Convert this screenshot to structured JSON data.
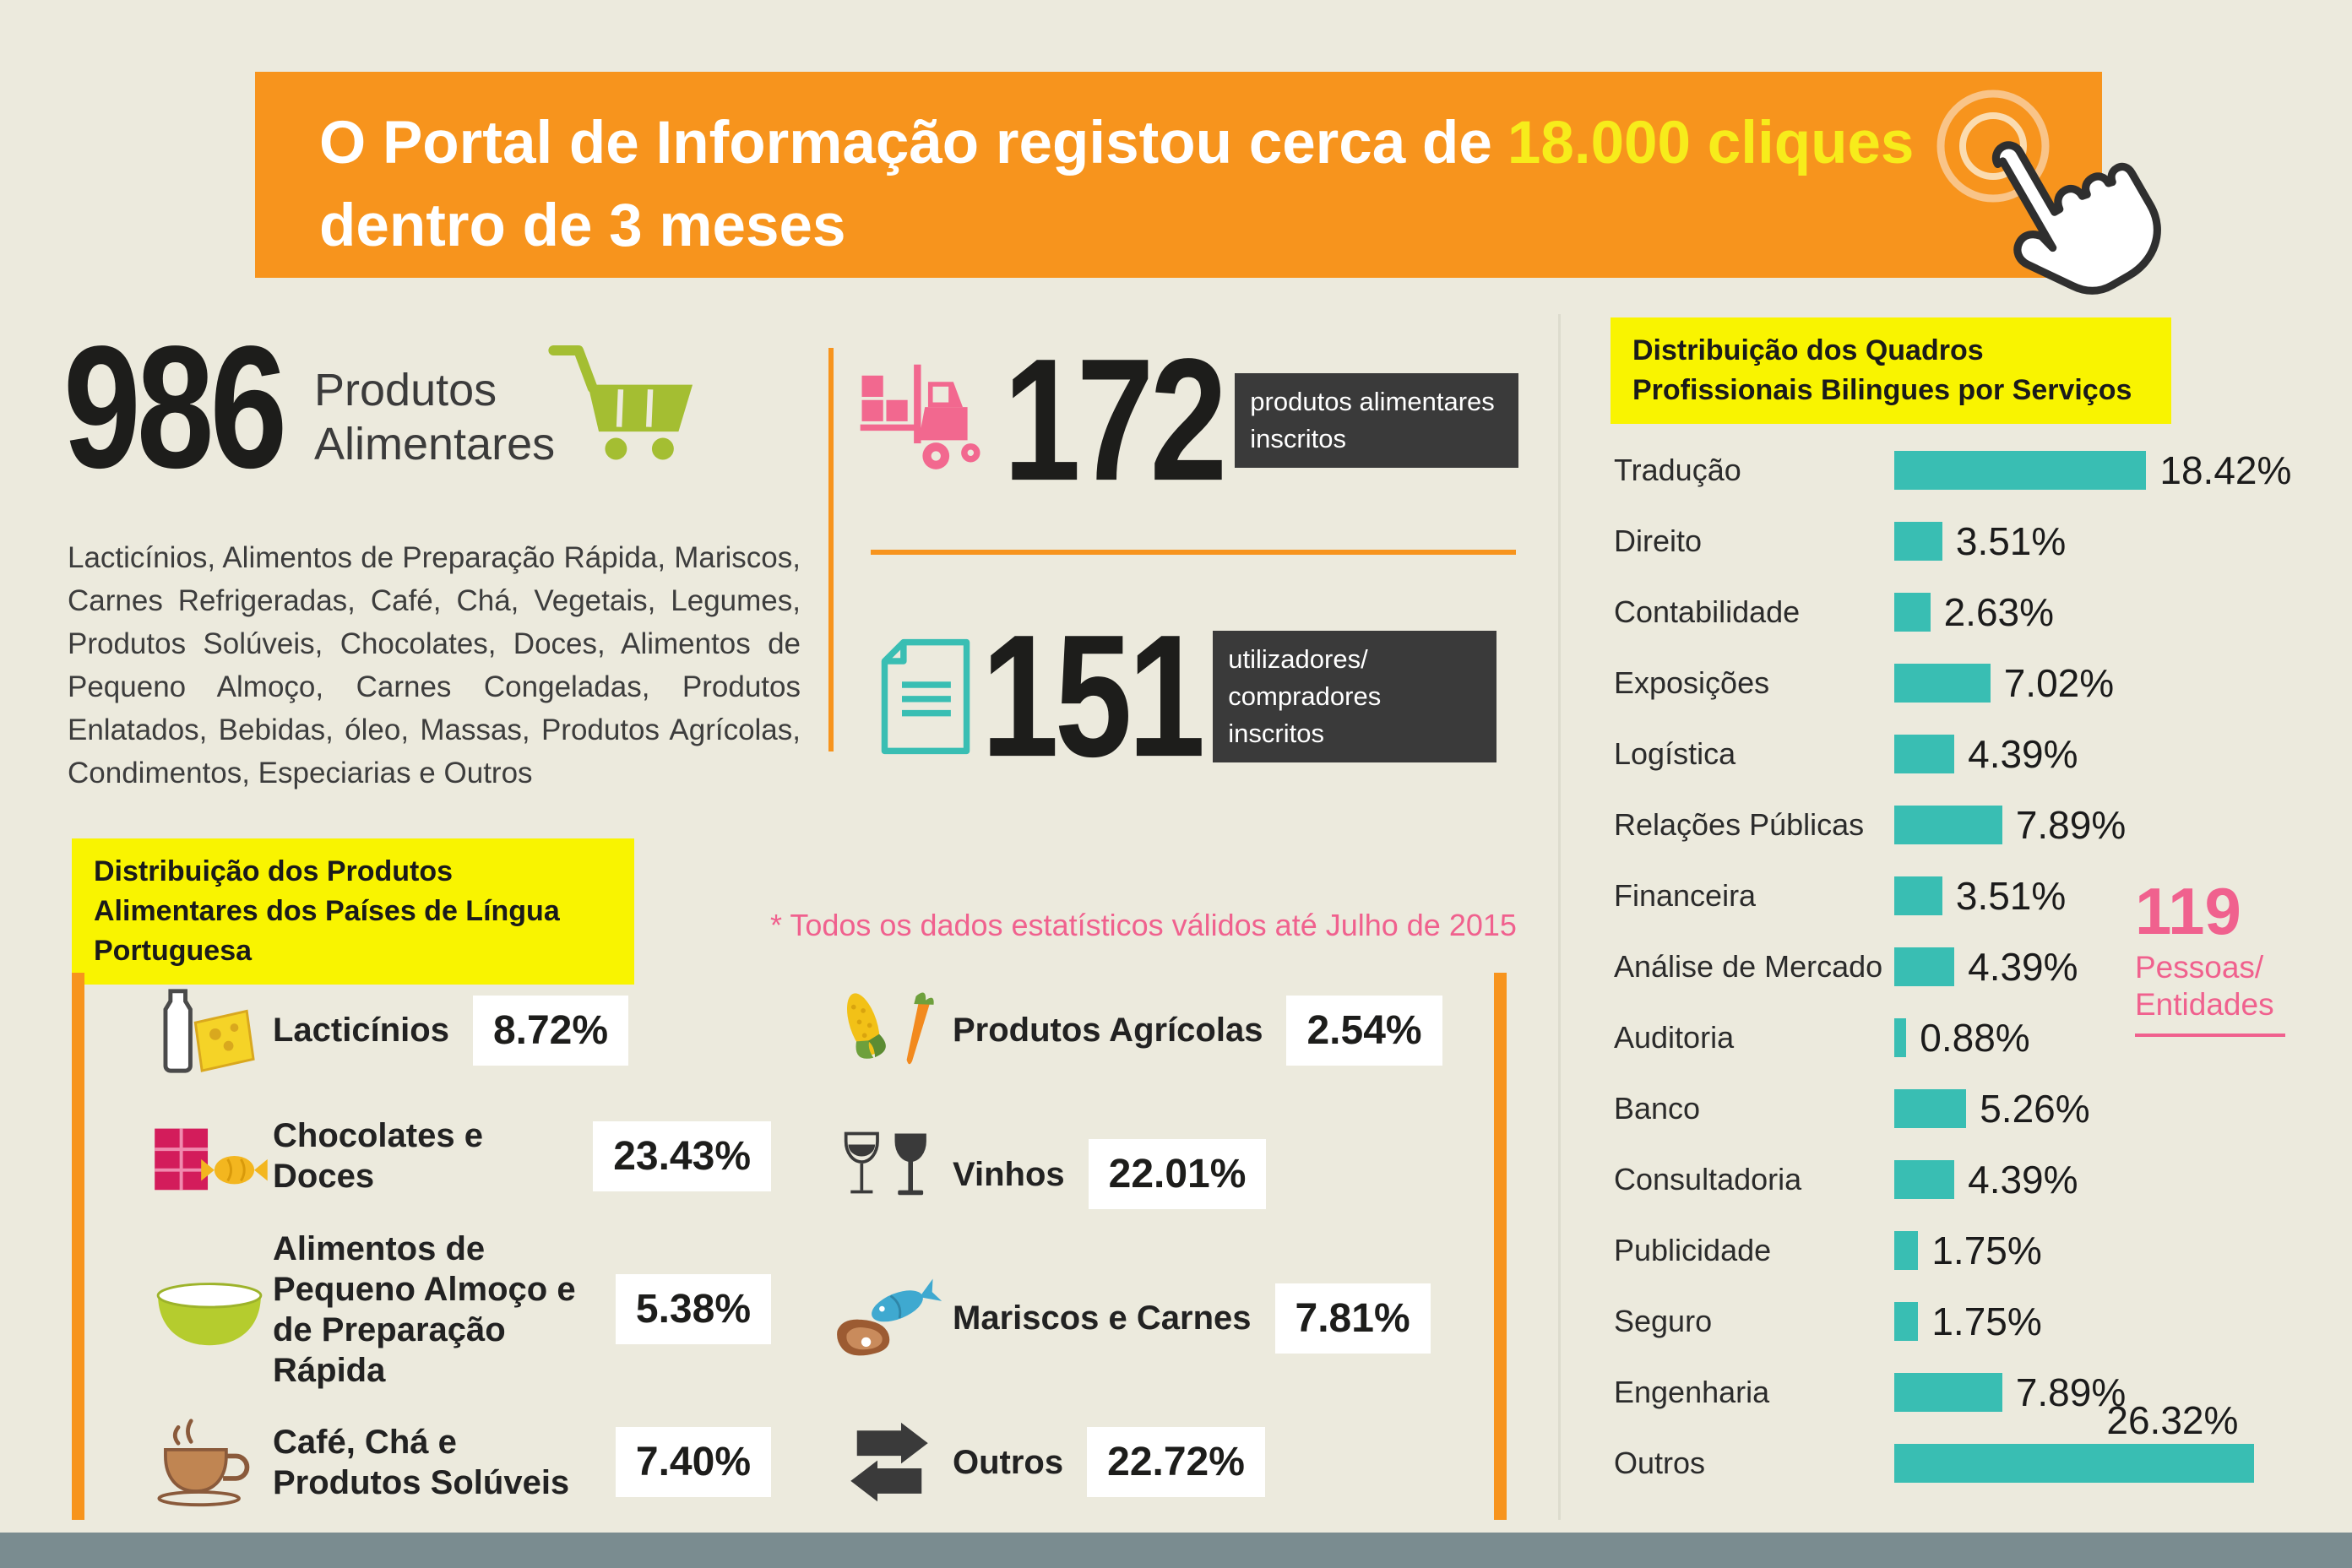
{
  "colors": {
    "background": "#ECEADD",
    "accent_orange": "#F7941D",
    "accent_yellow": "#F9F400",
    "accent_teal": "#39BEB3",
    "accent_pink": "#F0618E",
    "badge_dark": "#3A3A3A",
    "footer_gray": "#7A8C90"
  },
  "banner": {
    "text_before": "O Portal de Informação registou cerca de",
    "highlight": "18.000 cliques",
    "text_line2": "dentro de 3 meses",
    "cursor_icon": "hand-cursor-icon"
  },
  "products_stat": {
    "value": "986",
    "label": "Produtos Alimentares",
    "icon": "cart-icon",
    "description": "Lacticínios, Alimentos de Preparação Rápida, Mariscos, Carnes Refrigeradas, Café, Chá, Vegetais, Legumes, Produtos Solúveis, Chocolates, Doces, Alimentos de Pequeno Almoço, Carnes Congeladas, Produtos Enlatados, Bebidas, óleo, Massas, Produtos Agrícolas, Condimentos, Especiarias e Outros"
  },
  "registered": {
    "products": {
      "value": "172",
      "label": "produtos alimentares inscritos",
      "icon": "forklift-icon"
    },
    "buyers": {
      "value": "151",
      "label": "utilizadores/ compradores inscritos",
      "icon": "document-icon"
    }
  },
  "chart_data": [
    {
      "type": "bar",
      "orientation": "horizontal",
      "title": "Distribuição dos Quadros Profissionais Bilingues por Serviços",
      "categories": [
        "Tradução",
        "Direito",
        "Contabilidade",
        "Exposições",
        "Logística",
        "Relações Públicas",
        "Financeira",
        "Análise de Mercado",
        "Auditoria",
        "Banco",
        "Consultadoria",
        "Publicidade",
        "Seguro",
        "Engenharia",
        "Outros"
      ],
      "values": [
        18.42,
        3.51,
        2.63,
        7.02,
        4.39,
        7.89,
        3.51,
        4.39,
        0.88,
        5.26,
        4.39,
        1.75,
        1.75,
        7.89,
        26.32
      ],
      "unit": "%",
      "bar_color": "#39BEB3",
      "legend_position": "none",
      "grid": false,
      "annotation": {
        "value": "119",
        "label": "Pessoas/ Entidades"
      }
    },
    {
      "type": "table",
      "title": "Distribuição dos Produtos Alimentares dos Países de Língua Portuguesa",
      "note": "* Todos os dados estatísticos válidos até Julho de 2015",
      "categories": [
        "Lacticínios",
        "Chocolates e Doces",
        "Alimentos de Pequeno Almoço e de Preparação Rápida",
        "Café, Chá e Produtos Solúveis",
        "Produtos Agrícolas",
        "Vinhos",
        "Mariscos e Carnes",
        "Outros"
      ],
      "values": [
        8.72,
        23.43,
        5.38,
        7.4,
        2.54,
        22.01,
        7.81,
        22.72
      ],
      "unit": "%",
      "icons": [
        "dairy-icon",
        "chocolate-icon",
        "breakfast-bowl-icon",
        "coffee-icon",
        "agriculture-icon",
        "wine-icon",
        "seafood-meat-icon",
        "transfer-arrows-icon"
      ]
    }
  ]
}
